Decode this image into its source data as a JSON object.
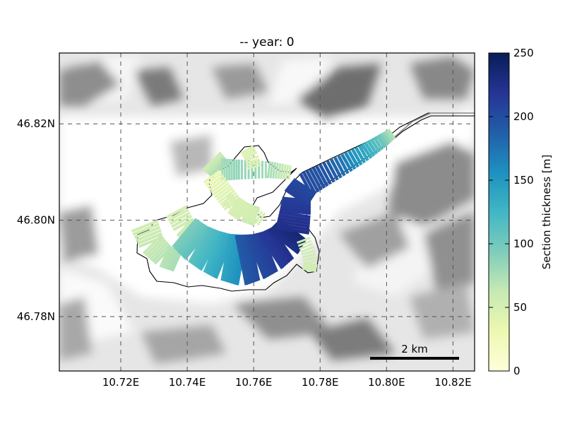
{
  "title": "-- year: 0",
  "chart_data": {
    "type": "map",
    "title": "-- year: 0",
    "x_ticks": [
      {
        "value": 10.72,
        "label": "10.72E"
      },
      {
        "value": 10.74,
        "label": "10.74E"
      },
      {
        "value": 10.76,
        "label": "10.76E"
      },
      {
        "value": 10.78,
        "label": "10.78E"
      },
      {
        "value": 10.8,
        "label": "10.80E"
      },
      {
        "value": 10.82,
        "label": "10.82E"
      }
    ],
    "y_ticks": [
      {
        "value": 46.78,
        "label": "46.78N"
      },
      {
        "value": 46.8,
        "label": "46.80N"
      },
      {
        "value": 46.82,
        "label": "46.82N"
      }
    ],
    "xlim": [
      10.7015,
      10.8265
    ],
    "ylim": [
      46.7687,
      46.8347
    ],
    "grid": true,
    "scalebar": {
      "label": "2 km"
    },
    "colorbar": {
      "label": "Section thickness [m]",
      "min": 0,
      "max": 250,
      "ticks": [
        0,
        50,
        100,
        150,
        200,
        250
      ],
      "colormap": "YlGnBu",
      "stops": [
        "#ffffd9",
        "#edf8b1",
        "#c7e9b4",
        "#7fcdbb",
        "#41b6c4",
        "#1d91c0",
        "#225ea8",
        "#253494",
        "#081d58"
      ]
    }
  }
}
